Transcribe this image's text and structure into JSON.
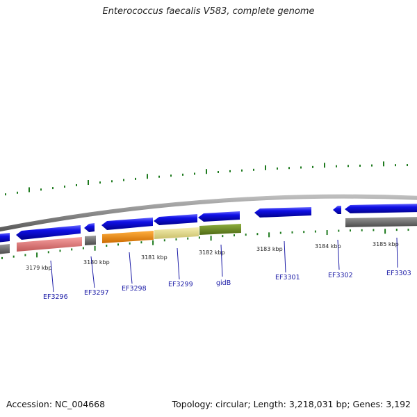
{
  "title": "Enterococcus faecalis V583, complete genome",
  "footer": {
    "accession": "Accession: NC_004668",
    "summary": "Topology: circular; Length: 3,218,031 bp; Genes: 3,192"
  },
  "colors": {
    "cds": "#1010e6",
    "ruler_tick": "#1e7a1e",
    "backbone": "#8c8c8c",
    "label": "#1a1aa6",
    "cog_gray": "#6e6e6e",
    "cog_pink": "#f08080",
    "cog_orange": "#ff8c00",
    "cog_khaki": "#ece490",
    "cog_olive": "#6b8e23"
  },
  "scale": [
    {
      "label": "3179 kbp"
    },
    {
      "label": "3180 kbp"
    },
    {
      "label": "3181 kbp"
    },
    {
      "label": "3182 kbp"
    },
    {
      "label": "3183 kbp"
    },
    {
      "label": "3184 kbp"
    },
    {
      "label": "3185 kbp"
    }
  ],
  "genes": [
    {
      "label": "EF3296",
      "strand": "minus",
      "cog": "cog_pink"
    },
    {
      "label": "EF3297",
      "strand": "minus",
      "cog": "cog_gray"
    },
    {
      "label": "EF3298",
      "strand": "minus",
      "cog": "cog_orange"
    },
    {
      "label": "EF3299",
      "strand": "minus",
      "cog": "cog_khaki"
    },
    {
      "label": "gidB",
      "strand": "minus",
      "cog": "cog_olive"
    },
    {
      "label": "EF3301",
      "strand": "minus",
      "cog": ""
    },
    {
      "label": "EF3302",
      "strand": "minus",
      "cog": ""
    },
    {
      "label": "EF3303",
      "strand": "minus",
      "cog": "cog_gray"
    }
  ]
}
